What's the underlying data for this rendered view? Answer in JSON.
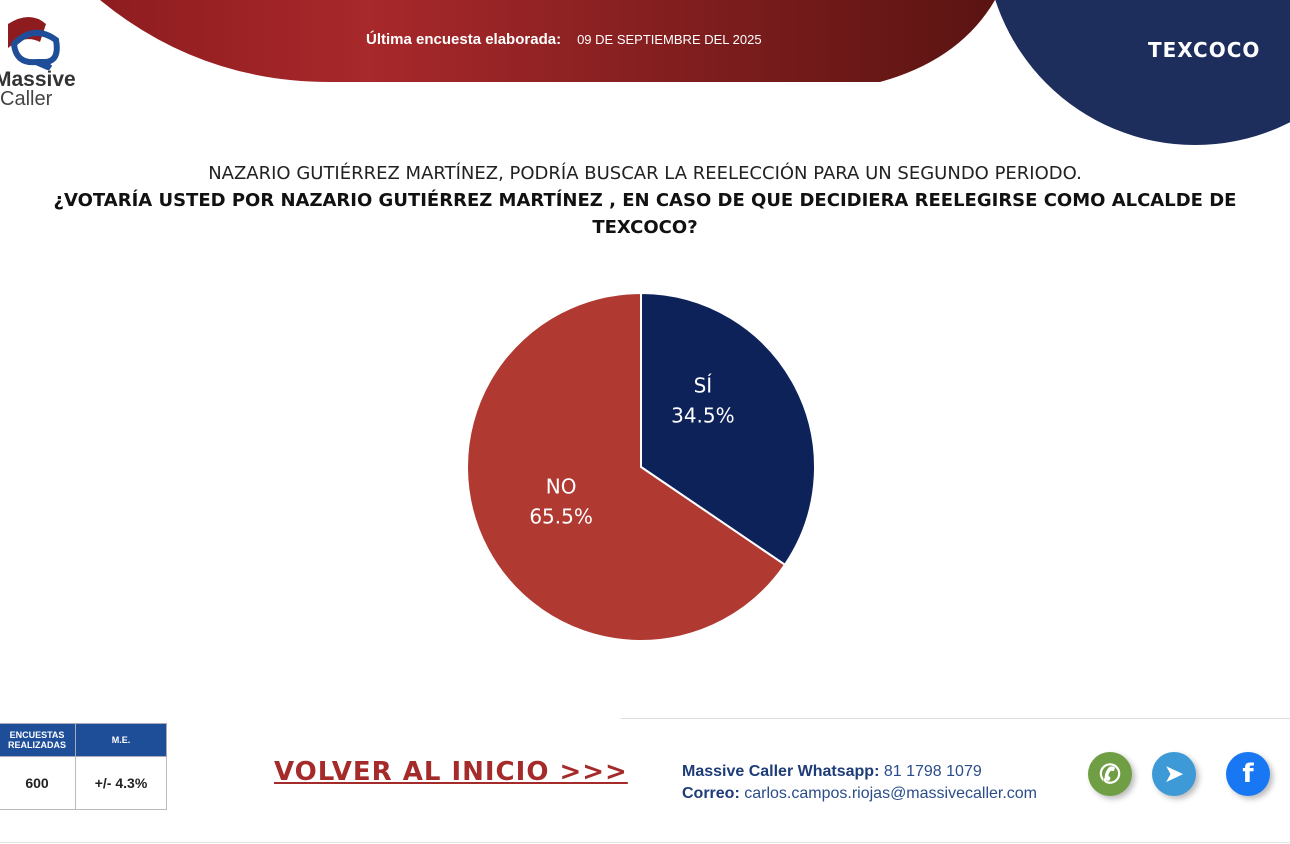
{
  "header": {
    "update_label": "Última encuesta elaborada:",
    "update_date": "09 DE SEPTIEMBRE DEL 2025",
    "city": "TEXCOCO",
    "logo_text1": "Massive",
    "logo_text2": "Caller"
  },
  "question": {
    "intro": "NAZARIO GUTIÉRREZ MARTÍNEZ,  PODRÍA BUSCAR LA REELECCIÓN PARA UN SEGUNDO PERIODO.",
    "text": "¿VOTARÍA USTED POR NAZARIO GUTIÉRREZ MARTÍNEZ , EN CASO DE QUE DECIDIERA REELEGIRSE COMO ALCALDE DE TEXCOCO?"
  },
  "chart_data": {
    "type": "pie",
    "title": "¿VOTARÍA USTED POR NAZARIO GUTIÉRREZ MARTÍNEZ , EN CASO DE QUE DECIDIERA REELEGIRSE COMO ALCALDE DE TEXCOCO?",
    "categories": [
      "SÍ",
      "NO"
    ],
    "values": [
      34.5,
      65.5
    ],
    "labels": [
      "34.5%",
      "65.5%"
    ],
    "colors": [
      "#0d2259",
      "#b03a31"
    ]
  },
  "stats": {
    "h1": "ENCUESTAS REALIZADAS",
    "h2": "M.E.",
    "v1": "600",
    "v2": "+/- 4.3%"
  },
  "back_link": "VOLVER AL INICIO >>>",
  "contact": {
    "wa_label": "Massive Caller Whatsapp:",
    "wa": "81 1798 1079",
    "mail_label": "Correo:",
    "mail": "carlos.campos.riojas@massivecaller.com"
  }
}
